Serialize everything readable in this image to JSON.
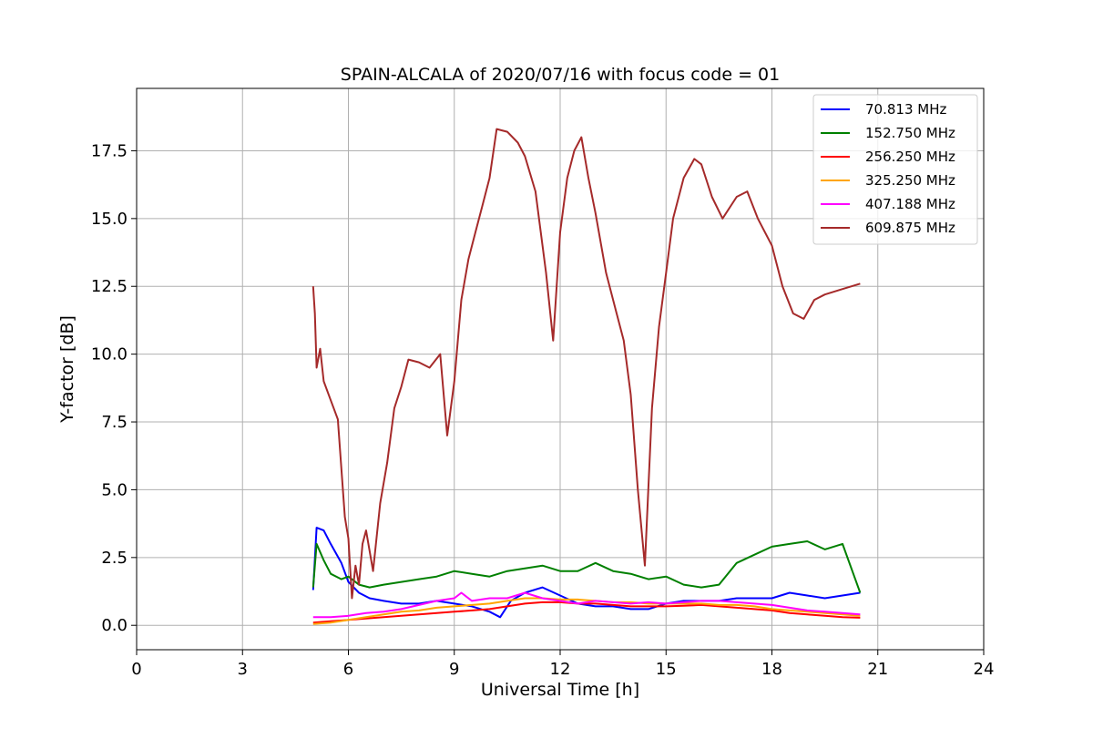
{
  "chart_data": {
    "type": "line",
    "title": "SPAIN-ALCALA of 2020/07/16 with focus code = 01",
    "xlabel": "Universal Time [h]",
    "ylabel": "Y-factor [dB]",
    "xlim": [
      0,
      24
    ],
    "ylim": [
      -0.9,
      19.8
    ],
    "xticks": [
      0,
      3,
      6,
      9,
      12,
      15,
      18,
      21,
      24
    ],
    "xtick_labels": [
      "0",
      "3",
      "6",
      "9",
      "12",
      "15",
      "18",
      "21",
      "24"
    ],
    "yticks": [
      0,
      2.5,
      5,
      7.5,
      10,
      12.5,
      15,
      17.5
    ],
    "ytick_labels": [
      "0.0",
      "2.5",
      "5.0",
      "7.5",
      "10.0",
      "12.5",
      "15.0",
      "17.5"
    ],
    "grid": true,
    "legend_position": "top-right",
    "series": [
      {
        "name": " 70.813 MHz",
        "color": "#0000ff",
        "x": [
          5.0,
          5.1,
          5.3,
          5.5,
          5.8,
          6.0,
          6.3,
          6.6,
          7.0,
          7.5,
          8.0,
          8.5,
          9.0,
          9.5,
          10.0,
          10.3,
          10.6,
          11.0,
          11.5,
          12.0,
          12.5,
          13.0,
          13.5,
          14.0,
          14.5,
          15.0,
          15.5,
          16.0,
          16.5,
          17.0,
          17.5,
          18.0,
          18.5,
          19.0,
          19.5,
          20.0,
          20.5
        ],
        "y": [
          1.3,
          3.6,
          3.5,
          3.0,
          2.3,
          1.6,
          1.2,
          1.0,
          0.9,
          0.8,
          0.8,
          0.9,
          0.8,
          0.7,
          0.5,
          0.3,
          0.9,
          1.2,
          1.4,
          1.1,
          0.8,
          0.7,
          0.7,
          0.6,
          0.6,
          0.8,
          0.9,
          0.9,
          0.9,
          1.0,
          1.0,
          1.0,
          1.2,
          1.1,
          1.0,
          1.1,
          1.2
        ]
      },
      {
        "name": "152.750 MHz",
        "color": "#008000",
        "x": [
          5.0,
          5.1,
          5.3,
          5.5,
          5.8,
          6.0,
          6.3,
          6.6,
          7.0,
          7.5,
          8.0,
          8.5,
          9.0,
          9.5,
          10.0,
          10.5,
          11.0,
          11.5,
          12.0,
          12.5,
          13.0,
          13.5,
          14.0,
          14.5,
          15.0,
          15.5,
          16.0,
          16.5,
          17.0,
          17.5,
          18.0,
          18.5,
          19.0,
          19.5,
          20.0,
          20.5
        ],
        "y": [
          1.4,
          3.0,
          2.4,
          1.9,
          1.7,
          1.8,
          1.5,
          1.4,
          1.5,
          1.6,
          1.7,
          1.8,
          2.0,
          1.9,
          1.8,
          2.0,
          2.1,
          2.2,
          2.0,
          2.0,
          2.3,
          2.0,
          1.9,
          1.7,
          1.8,
          1.5,
          1.4,
          1.5,
          2.3,
          2.6,
          2.9,
          3.0,
          3.1,
          2.8,
          3.0,
          1.2
        ]
      },
      {
        "name": "256.250 MHz",
        "color": "#ff0000",
        "x": [
          5.0,
          5.5,
          6.0,
          6.5,
          7.0,
          7.5,
          8.0,
          8.5,
          9.0,
          9.5,
          10.0,
          10.5,
          11.0,
          11.5,
          12.0,
          12.5,
          13.0,
          13.5,
          14.0,
          14.5,
          15.0,
          15.5,
          16.0,
          16.5,
          17.0,
          17.5,
          18.0,
          18.5,
          19.0,
          19.5,
          20.0,
          20.5
        ],
        "y": [
          0.1,
          0.15,
          0.2,
          0.25,
          0.3,
          0.35,
          0.4,
          0.45,
          0.5,
          0.55,
          0.6,
          0.7,
          0.8,
          0.85,
          0.85,
          0.8,
          0.8,
          0.75,
          0.7,
          0.7,
          0.7,
          0.72,
          0.75,
          0.7,
          0.65,
          0.6,
          0.55,
          0.45,
          0.4,
          0.35,
          0.3,
          0.28
        ]
      },
      {
        "name": "325.250 MHz",
        "color": "#ffa500",
        "x": [
          5.0,
          5.5,
          6.0,
          6.5,
          7.0,
          7.5,
          8.0,
          8.5,
          9.0,
          9.5,
          10.0,
          10.5,
          11.0,
          11.5,
          12.0,
          12.5,
          13.0,
          13.5,
          14.0,
          14.5,
          15.0,
          15.5,
          16.0,
          16.5,
          17.0,
          17.5,
          18.0,
          18.5,
          19.0,
          19.5,
          20.0,
          20.5
        ],
        "y": [
          0.05,
          0.1,
          0.2,
          0.3,
          0.4,
          0.5,
          0.55,
          0.65,
          0.7,
          0.75,
          0.8,
          0.9,
          1.0,
          1.0,
          0.95,
          0.95,
          0.9,
          0.85,
          0.85,
          0.8,
          0.8,
          0.8,
          0.8,
          0.75,
          0.75,
          0.7,
          0.6,
          0.55,
          0.5,
          0.45,
          0.4,
          0.35
        ]
      },
      {
        "name": "407.188 MHz",
        "color": "#ff00ff",
        "x": [
          5.0,
          5.5,
          6.0,
          6.5,
          7.0,
          7.5,
          8.0,
          8.5,
          9.0,
          9.2,
          9.5,
          10.0,
          10.5,
          11.0,
          11.5,
          12.0,
          12.5,
          13.0,
          13.5,
          14.0,
          14.5,
          15.0,
          15.5,
          16.0,
          16.5,
          17.0,
          17.5,
          18.0,
          18.5,
          19.0,
          19.5,
          20.0,
          20.5
        ],
        "y": [
          0.3,
          0.3,
          0.35,
          0.45,
          0.5,
          0.6,
          0.75,
          0.9,
          1.0,
          1.2,
          0.9,
          1.0,
          1.0,
          1.2,
          1.0,
          0.9,
          0.8,
          0.9,
          0.85,
          0.8,
          0.85,
          0.8,
          0.85,
          0.9,
          0.9,
          0.85,
          0.8,
          0.75,
          0.65,
          0.55,
          0.5,
          0.45,
          0.4
        ]
      },
      {
        "name": "609.875 MHz",
        "color": "#a52a2a",
        "x": [
          5.0,
          5.05,
          5.1,
          5.2,
          5.3,
          5.5,
          5.7,
          5.9,
          6.0,
          6.1,
          6.2,
          6.3,
          6.4,
          6.5,
          6.7,
          6.9,
          7.1,
          7.3,
          7.5,
          7.7,
          8.0,
          8.3,
          8.6,
          8.8,
          9.0,
          9.2,
          9.4,
          9.6,
          9.8,
          10.0,
          10.2,
          10.5,
          10.8,
          11.0,
          11.3,
          11.6,
          11.8,
          12.0,
          12.2,
          12.4,
          12.6,
          12.8,
          13.0,
          13.3,
          13.6,
          13.8,
          14.0,
          14.2,
          14.4,
          14.6,
          14.8,
          15.0,
          15.2,
          15.5,
          15.8,
          16.0,
          16.3,
          16.6,
          17.0,
          17.3,
          17.6,
          18.0,
          18.3,
          18.6,
          18.9,
          19.2,
          19.5,
          20.0,
          20.5
        ],
        "y": [
          12.5,
          11.5,
          9.5,
          10.2,
          9.0,
          8.3,
          7.6,
          4.0,
          3.2,
          1.0,
          2.2,
          1.5,
          3.0,
          3.5,
          2.0,
          4.5,
          6.0,
          8.0,
          8.8,
          9.8,
          9.7,
          9.5,
          10.0,
          7.0,
          9.0,
          12.0,
          13.5,
          14.5,
          15.5,
          16.5,
          18.3,
          18.2,
          17.8,
          17.3,
          16.0,
          13.0,
          10.5,
          14.5,
          16.5,
          17.5,
          18.0,
          16.5,
          15.2,
          13.0,
          11.5,
          10.5,
          8.5,
          5.0,
          2.2,
          8.0,
          11.0,
          13.0,
          15.0,
          16.5,
          17.2,
          17.0,
          15.8,
          15.0,
          15.8,
          16.0,
          15.0,
          14.0,
          12.5,
          11.5,
          11.3,
          12.0,
          12.2,
          12.4,
          12.6
        ]
      }
    ]
  }
}
